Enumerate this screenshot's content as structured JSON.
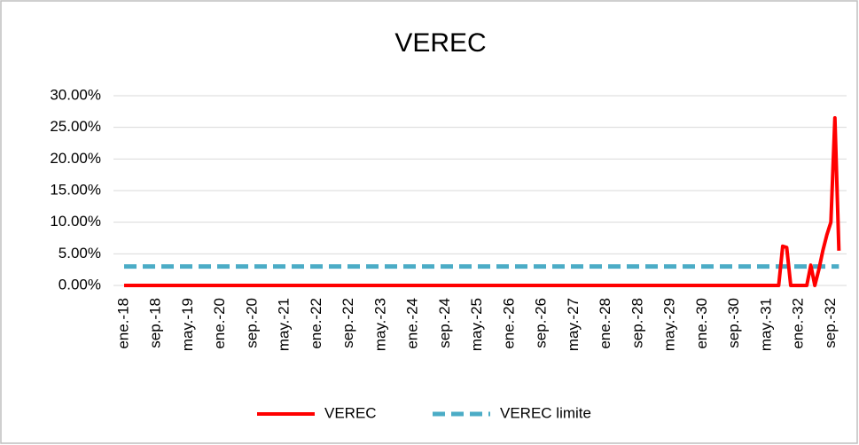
{
  "chart_data": {
    "type": "line",
    "title": "VEREC",
    "categories": [
      "ene.-18",
      null,
      null,
      null,
      null,
      null,
      null,
      null,
      "sep.-18",
      null,
      null,
      null,
      null,
      null,
      null,
      null,
      "may.-19",
      null,
      null,
      null,
      null,
      null,
      null,
      null,
      "ene.-20",
      null,
      null,
      null,
      null,
      null,
      null,
      null,
      "sep.-20",
      null,
      null,
      null,
      null,
      null,
      null,
      null,
      "may.-21",
      null,
      null,
      null,
      null,
      null,
      null,
      null,
      "ene.-22",
      null,
      null,
      null,
      null,
      null,
      null,
      null,
      "sep.-22",
      null,
      null,
      null,
      null,
      null,
      null,
      null,
      "may.-23",
      null,
      null,
      null,
      null,
      null,
      null,
      null,
      "ene.-24",
      null,
      null,
      null,
      null,
      null,
      null,
      null,
      "sep.-24",
      null,
      null,
      null,
      null,
      null,
      null,
      null,
      "may.-25",
      null,
      null,
      null,
      null,
      null,
      null,
      null,
      "ene.-26",
      null,
      null,
      null,
      null,
      null,
      null,
      null,
      "sep.-26",
      null,
      null,
      null,
      null,
      null,
      null,
      null,
      "may.-27",
      null,
      null,
      null,
      null,
      null,
      null,
      null,
      "ene.-28",
      null,
      null,
      null,
      null,
      null,
      null,
      null,
      "sep.-28",
      null,
      null,
      null,
      null,
      null,
      null,
      null,
      "may.-29",
      null,
      null,
      null,
      null,
      null,
      null,
      null,
      "ene.-30",
      null,
      null,
      null,
      null,
      null,
      null,
      null,
      "sep.-30",
      null,
      null,
      null,
      null,
      null,
      null,
      null,
      "may.-31",
      null,
      null,
      null,
      null,
      null,
      null,
      null,
      "ene.-32",
      null,
      null,
      null,
      null,
      null,
      null,
      null,
      "sep.-32",
      null,
      null
    ],
    "series": [
      {
        "name": "VEREC",
        "color": "#ff0000",
        "dashed": false,
        "values": [
          0,
          0,
          0,
          0,
          0,
          0,
          0,
          0,
          0,
          0,
          0,
          0,
          0,
          0,
          0,
          0,
          0,
          0,
          0,
          0,
          0,
          0,
          0,
          0,
          0,
          0,
          0,
          0,
          0,
          0,
          0,
          0,
          0,
          0,
          0,
          0,
          0,
          0,
          0,
          0,
          0,
          0,
          0,
          0,
          0,
          0,
          0,
          0,
          0,
          0,
          0,
          0,
          0,
          0,
          0,
          0,
          0,
          0,
          0,
          0,
          0,
          0,
          0,
          0,
          0,
          0,
          0,
          0,
          0,
          0,
          0,
          0,
          0,
          0,
          0,
          0,
          0,
          0,
          0,
          0,
          0,
          0,
          0,
          0,
          0,
          0,
          0,
          0,
          0,
          0,
          0,
          0,
          0,
          0,
          0,
          0,
          0,
          0,
          0,
          0,
          0,
          0,
          0,
          0,
          0,
          0,
          0,
          0,
          0,
          0,
          0,
          0,
          0,
          0,
          0,
          0,
          0,
          0,
          0,
          0,
          0,
          0,
          0,
          0,
          0,
          0,
          0,
          0,
          0,
          0,
          0,
          0,
          0,
          0,
          0,
          0,
          0,
          0,
          0,
          0,
          0,
          0,
          0,
          0,
          0,
          0,
          0,
          0,
          0,
          0,
          0,
          0,
          0,
          0,
          0,
          0,
          0,
          0,
          0,
          0,
          0,
          0,
          0,
          0,
          6.2,
          6.0,
          0,
          0,
          0,
          0,
          0,
          3.2,
          0,
          2.5,
          5.5,
          8,
          10,
          26.5,
          5.5
        ]
      },
      {
        "name": "VEREC limite",
        "color": "#4bacc6",
        "dashed": true,
        "values": [
          3,
          3,
          3,
          3,
          3,
          3,
          3,
          3,
          3,
          3,
          3,
          3,
          3,
          3,
          3,
          3,
          3,
          3,
          3,
          3,
          3,
          3,
          3,
          3,
          3,
          3,
          3,
          3,
          3,
          3,
          3,
          3,
          3,
          3,
          3,
          3,
          3,
          3,
          3,
          3,
          3,
          3,
          3,
          3,
          3,
          3,
          3,
          3,
          3,
          3,
          3,
          3,
          3,
          3,
          3,
          3,
          3,
          3,
          3,
          3,
          3,
          3,
          3,
          3,
          3,
          3,
          3,
          3,
          3,
          3,
          3,
          3,
          3,
          3,
          3,
          3,
          3,
          3,
          3,
          3,
          3,
          3,
          3,
          3,
          3,
          3,
          3,
          3,
          3,
          3,
          3,
          3,
          3,
          3,
          3,
          3,
          3,
          3,
          3,
          3,
          3,
          3,
          3,
          3,
          3,
          3,
          3,
          3,
          3,
          3,
          3,
          3,
          3,
          3,
          3,
          3,
          3,
          3,
          3,
          3,
          3,
          3,
          3,
          3,
          3,
          3,
          3,
          3,
          3,
          3,
          3,
          3,
          3,
          3,
          3,
          3,
          3,
          3,
          3,
          3,
          3,
          3,
          3,
          3,
          3,
          3,
          3,
          3,
          3,
          3,
          3,
          3,
          3,
          3,
          3,
          3,
          3,
          3,
          3,
          3,
          3,
          3,
          3,
          3,
          3,
          3,
          3,
          3,
          3,
          3,
          3,
          3,
          3,
          3,
          3,
          3,
          3,
          3,
          3
        ]
      }
    ],
    "ylim": [
      0,
      30
    ],
    "yticks": [
      {
        "value": 0,
        "label": "0.00%"
      },
      {
        "value": 5,
        "label": "5.00%"
      },
      {
        "value": 10,
        "label": "10.00%"
      },
      {
        "value": 15,
        "label": "15.00%"
      },
      {
        "value": 20,
        "label": "20.00%"
      },
      {
        "value": 25,
        "label": "25.00%"
      },
      {
        "value": 30,
        "label": "30.00%"
      }
    ],
    "grid": true,
    "legend": "bottom"
  }
}
